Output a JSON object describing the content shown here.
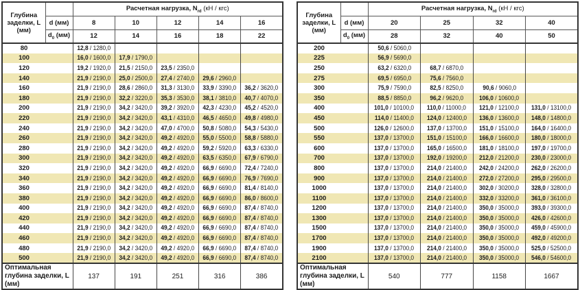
{
  "header": {
    "depth_label": "Глубина заделки, L (мм)",
    "load_label": "Расчетная нагрузка, N",
    "load_sub": "rd",
    "load_units": " (кН / кгс)",
    "d_label": "d (мм)",
    "d0_label": "d",
    "d0_sub": "0",
    "d0_units": " (мм)"
  },
  "footer_label": "Оптимальная глубина заделки, L (мм)",
  "accent_row_color": "#f0e7b4",
  "left": {
    "d": [
      "8",
      "10",
      "12",
      "14",
      "16"
    ],
    "d0": [
      "12",
      "14",
      "16",
      "18",
      "22"
    ],
    "optimal": [
      "137",
      "191",
      "251",
      "316",
      "386"
    ],
    "rows": [
      {
        "L": "80",
        "v": [
          [
            "12,8",
            "1280,0"
          ],
          null,
          null,
          null,
          null
        ]
      },
      {
        "L": "100",
        "v": [
          [
            "16,0",
            "1600,0"
          ],
          [
            "17,9",
            "1790,0"
          ],
          null,
          null,
          null
        ]
      },
      {
        "L": "120",
        "v": [
          [
            "19,2",
            "1920,0"
          ],
          [
            "21,5",
            "2150,0"
          ],
          [
            "23,5",
            "2350,0"
          ],
          null,
          null
        ]
      },
      {
        "L": "140",
        "v": [
          [
            "21,9",
            "2190,0"
          ],
          [
            "25,0",
            "2500,0"
          ],
          [
            "27,4",
            "2740,0"
          ],
          [
            "29,6",
            "2960,0"
          ],
          null
        ]
      },
      {
        "L": "160",
        "v": [
          [
            "21,9",
            "2190,0"
          ],
          [
            "28,6",
            "2860,0"
          ],
          [
            "31,3",
            "3130,0"
          ],
          [
            "33,9",
            "3390,0"
          ],
          [
            "36,2",
            "3620,0"
          ]
        ]
      },
      {
        "L": "180",
        "v": [
          [
            "21,9",
            "2190,0"
          ],
          [
            "32,2",
            "3220,0"
          ],
          [
            "35,3",
            "3530,0"
          ],
          [
            "38,1",
            "3810,0"
          ],
          [
            "40,7",
            "4070,0"
          ]
        ]
      },
      {
        "L": "200",
        "v": [
          [
            "21,9",
            "2190,0"
          ],
          [
            "34,2",
            "3420,0"
          ],
          [
            "39,2",
            "3920,0"
          ],
          [
            "42,3",
            "4230,0"
          ],
          [
            "45,2",
            "4520,0"
          ]
        ]
      },
      {
        "L": "220",
        "v": [
          [
            "21,9",
            "2190,0"
          ],
          [
            "34,2",
            "3420,0"
          ],
          [
            "43,1",
            "4310,0"
          ],
          [
            "46,5",
            "4650,0"
          ],
          [
            "49,8",
            "4980,0"
          ]
        ]
      },
      {
        "L": "240",
        "v": [
          [
            "21,9",
            "2190,0"
          ],
          [
            "34,2",
            "3420,0"
          ],
          [
            "47,0",
            "4700,0"
          ],
          [
            "50,8",
            "5080,0"
          ],
          [
            "54,3",
            "5430,0"
          ]
        ]
      },
      {
        "L": "260",
        "v": [
          [
            "21,9",
            "2190,0"
          ],
          [
            "34,2",
            "3420,0"
          ],
          [
            "49,2",
            "4920,0"
          ],
          [
            "55,0",
            "5500,0"
          ],
          [
            "58,8",
            "5880,0"
          ]
        ]
      },
      {
        "L": "280",
        "v": [
          [
            "21,9",
            "2190,0"
          ],
          [
            "34,2",
            "3420,0"
          ],
          [
            "49,2",
            "4920,0"
          ],
          [
            "59,2",
            "5920,0"
          ],
          [
            "63,3",
            "6330,0"
          ]
        ]
      },
      {
        "L": "300",
        "v": [
          [
            "21,9",
            "2190,0"
          ],
          [
            "34,2",
            "3420,0"
          ],
          [
            "49,2",
            "4920,0"
          ],
          [
            "63,5",
            "6350,0"
          ],
          [
            "67,9",
            "6790,0"
          ]
        ]
      },
      {
        "L": "320",
        "v": [
          [
            "21,9",
            "2190,0"
          ],
          [
            "34,2",
            "3420,0"
          ],
          [
            "49,2",
            "4920,0"
          ],
          [
            "66,9",
            "6690,0"
          ],
          [
            "72,4",
            "7240,0"
          ]
        ]
      },
      {
        "L": "340",
        "v": [
          [
            "21,9",
            "2190,0"
          ],
          [
            "34,2",
            "3420,0"
          ],
          [
            "49,2",
            "4920,0"
          ],
          [
            "66,9",
            "6690,0"
          ],
          [
            "76,9",
            "7690,0"
          ]
        ]
      },
      {
        "L": "360",
        "v": [
          [
            "21,9",
            "2190,0"
          ],
          [
            "34,2",
            "3420,0"
          ],
          [
            "49,2",
            "4920,0"
          ],
          [
            "66,9",
            "6690,0"
          ],
          [
            "81,4",
            "8140,0"
          ]
        ]
      },
      {
        "L": "380",
        "v": [
          [
            "21,9",
            "2190,0"
          ],
          [
            "34,2",
            "3420,0"
          ],
          [
            "49,2",
            "4920,0"
          ],
          [
            "66,9",
            "6690,0"
          ],
          [
            "86,0",
            "8600,0"
          ]
        ]
      },
      {
        "L": "400",
        "v": [
          [
            "21,9",
            "2190,0"
          ],
          [
            "34,2",
            "3420,0"
          ],
          [
            "49,2",
            "4920,0"
          ],
          [
            "66,9",
            "6690,0"
          ],
          [
            "87,4",
            "8740,0"
          ]
        ]
      },
      {
        "L": "420",
        "v": [
          [
            "21,9",
            "2190,0"
          ],
          [
            "34,2",
            "3420,0"
          ],
          [
            "49,2",
            "4920,0"
          ],
          [
            "66,9",
            "6690,0"
          ],
          [
            "87,4",
            "8740,0"
          ]
        ]
      },
      {
        "L": "440",
        "v": [
          [
            "21,9",
            "2190,0"
          ],
          [
            "34,2",
            "3420,0"
          ],
          [
            "49,2",
            "4920,0"
          ],
          [
            "66,9",
            "6690,0"
          ],
          [
            "87,4",
            "8740,0"
          ]
        ]
      },
      {
        "L": "460",
        "v": [
          [
            "21,9",
            "2190,0"
          ],
          [
            "34,2",
            "3420,0"
          ],
          [
            "49,2",
            "4920,0"
          ],
          [
            "66,9",
            "6690,0"
          ],
          [
            "87,4",
            "8740,0"
          ]
        ]
      },
      {
        "L": "480",
        "v": [
          [
            "21,9",
            "2190,0"
          ],
          [
            "34,2",
            "3420,0"
          ],
          [
            "49,2",
            "4920,0"
          ],
          [
            "66,9",
            "6690,0"
          ],
          [
            "87,4",
            "8740,0"
          ]
        ]
      },
      {
        "L": "500",
        "v": [
          [
            "21,9",
            "2190,0"
          ],
          [
            "34,2",
            "3420,0"
          ],
          [
            "49,2",
            "4920,0"
          ],
          [
            "66,9",
            "6690,0"
          ],
          [
            "87,4",
            "8740,0"
          ]
        ]
      }
    ]
  },
  "right": {
    "d": [
      "20",
      "25",
      "32",
      "40"
    ],
    "d0": [
      "28",
      "32",
      "40",
      "50"
    ],
    "optimal": [
      "540",
      "777",
      "1158",
      "1667"
    ],
    "rows": [
      {
        "L": "200",
        "v": [
          [
            "50,6",
            "5060,0"
          ],
          null,
          null,
          null
        ]
      },
      {
        "L": "225",
        "v": [
          [
            "56,9",
            "5690,0"
          ],
          null,
          null,
          null
        ]
      },
      {
        "L": "250",
        "v": [
          [
            "63,2",
            "6320,0"
          ],
          [
            "68,7",
            "6870,0"
          ],
          null,
          null
        ]
      },
      {
        "L": "275",
        "v": [
          [
            "69,5",
            "6950,0"
          ],
          [
            "75,6",
            "7560,0"
          ],
          null,
          null
        ]
      },
      {
        "L": "300",
        "v": [
          [
            "75,9",
            "7590,0"
          ],
          [
            "82,5",
            "8250,0"
          ],
          [
            "90,6",
            "9060,0"
          ],
          null
        ]
      },
      {
        "L": "350",
        "v": [
          [
            "88,5",
            "8850,0"
          ],
          [
            "96,2",
            "9620,0"
          ],
          [
            "106,0",
            "10600,0"
          ],
          null
        ]
      },
      {
        "L": "400",
        "v": [
          [
            "101,0",
            "10100,0"
          ],
          [
            "110,0",
            "11000,0"
          ],
          [
            "121,0",
            "12100,0"
          ],
          [
            "131,0",
            "13100,0"
          ]
        ]
      },
      {
        "L": "450",
        "v": [
          [
            "114,0",
            "11400,0"
          ],
          [
            "124,0",
            "12400,0"
          ],
          [
            "136,0",
            "13600,0"
          ],
          [
            "148,0",
            "14800,0"
          ]
        ]
      },
      {
        "L": "500",
        "v": [
          [
            "126,0",
            "12600,0"
          ],
          [
            "137,0",
            "13700,0"
          ],
          [
            "151,0",
            "15100,0"
          ],
          [
            "164,0",
            "16400,0"
          ]
        ]
      },
      {
        "L": "550",
        "v": [
          [
            "137,0",
            "13700,0"
          ],
          [
            "151,0",
            "15100,0"
          ],
          [
            "166,0",
            "16600,0"
          ],
          [
            "180,0",
            "18000,0"
          ]
        ]
      },
      {
        "L": "600",
        "v": [
          [
            "137,0",
            "13700,0"
          ],
          [
            "165,0",
            "16500,0"
          ],
          [
            "181,0",
            "18100,0"
          ],
          [
            "197,0",
            "19700,0"
          ]
        ]
      },
      {
        "L": "700",
        "v": [
          [
            "137,0",
            "13700,0"
          ],
          [
            "192,0",
            "19200,0"
          ],
          [
            "212,0",
            "21200,0"
          ],
          [
            "230,0",
            "23000,0"
          ]
        ]
      },
      {
        "L": "800",
        "v": [
          [
            "137,0",
            "13700,0"
          ],
          [
            "214,0",
            "21400,0"
          ],
          [
            "242,0",
            "24200,0"
          ],
          [
            "262,0",
            "26200,0"
          ]
        ]
      },
      {
        "L": "900",
        "v": [
          [
            "137,0",
            "13700,0"
          ],
          [
            "214,0",
            "21400,0"
          ],
          [
            "272,0",
            "27200,0"
          ],
          [
            "295,0",
            "29500,0"
          ]
        ]
      },
      {
        "L": "1000",
        "v": [
          [
            "137,0",
            "13700,0"
          ],
          [
            "214,0",
            "21400,0"
          ],
          [
            "302,0",
            "30200,0"
          ],
          [
            "328,0",
            "32800,0"
          ]
        ]
      },
      {
        "L": "1100",
        "v": [
          [
            "137,0",
            "13700,0"
          ],
          [
            "214,0",
            "21400,0"
          ],
          [
            "332,0",
            "33200,0"
          ],
          [
            "361,0",
            "36100,0"
          ]
        ]
      },
      {
        "L": "1200",
        "v": [
          [
            "137,0",
            "13700,0"
          ],
          [
            "214,0",
            "21400,0"
          ],
          [
            "350,0",
            "35000,0"
          ],
          [
            "393,0",
            "39300,0"
          ]
        ]
      },
      {
        "L": "1300",
        "v": [
          [
            "137,0",
            "13700,0"
          ],
          [
            "214,0",
            "21400,0"
          ],
          [
            "350,0",
            "35000,0"
          ],
          [
            "426,0",
            "42600,0"
          ]
        ]
      },
      {
        "L": "1500",
        "v": [
          [
            "137,0",
            "13700,0"
          ],
          [
            "214,0",
            "21400,0"
          ],
          [
            "350,0",
            "35000,0"
          ],
          [
            "459,0",
            "45900,0"
          ]
        ]
      },
      {
        "L": "1700",
        "v": [
          [
            "137,0",
            "13700,0"
          ],
          [
            "214,0",
            "21400,0"
          ],
          [
            "350,0",
            "35000,0"
          ],
          [
            "492,0",
            "49200,0"
          ]
        ]
      },
      {
        "L": "1900",
        "v": [
          [
            "137,0",
            "13700,0"
          ],
          [
            "214,0",
            "21400,0"
          ],
          [
            "350,0",
            "35000,0"
          ],
          [
            "525,0",
            "52500,0"
          ]
        ]
      },
      {
        "L": "2100",
        "v": [
          [
            "137,0",
            "13700,0"
          ],
          [
            "214,0",
            "21400,0"
          ],
          [
            "350,0",
            "35000,0"
          ],
          [
            "546,0",
            "54600,0"
          ]
        ]
      }
    ]
  }
}
